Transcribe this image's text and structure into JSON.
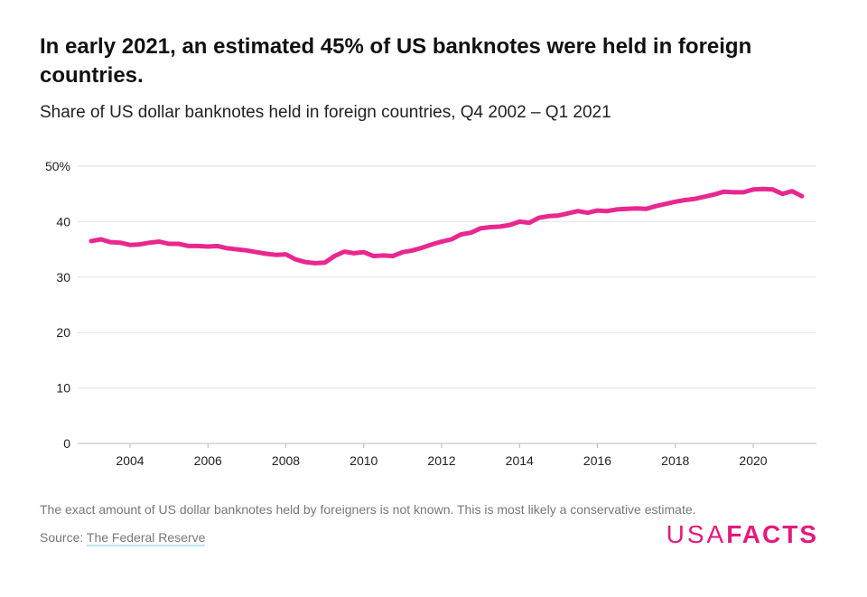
{
  "header": {
    "title": "In early 2021, an estimated 45% of US banknotes were held in foreign countries.",
    "subtitle": "Share of US dollar banknotes held in foreign countries, Q4 2002 – Q1 2021"
  },
  "footer": {
    "note": "The exact amount of US dollar banknotes held by foreigners is not known. This is most likely a conservative estimate.",
    "source_label": "Source: ",
    "source_link": "The Federal Reserve",
    "logo_light": "USA",
    "logo_bold": "FACTS"
  },
  "chart_data": {
    "type": "line",
    "title": "In early 2021, an estimated 45% of US banknotes were held in foreign countries.",
    "subtitle": "Share of US dollar banknotes held in foreign countries, Q4 2002 – Q1 2021",
    "xlabel": "",
    "ylabel": "",
    "start": "Q4 2002",
    "end": "Q1 2021",
    "frequency": "quarterly",
    "xlim": [
      2002.9,
      2021.3
    ],
    "ylim": [
      0,
      50
    ],
    "x_ticks": [
      "2004",
      "2006",
      "2008",
      "2010",
      "2012",
      "2014",
      "2016",
      "2018",
      "2020"
    ],
    "y_ticks": [
      "0",
      "10",
      "20",
      "30",
      "40",
      "50%"
    ],
    "grid": "horizontal",
    "color": "#e8288f",
    "series": [
      {
        "values": [
          36.5,
          36.8,
          36.3,
          36.2,
          35.8,
          35.9,
          36.2,
          36.4,
          36.0,
          36.0,
          35.6,
          35.6,
          35.5,
          35.6,
          35.2,
          35.0,
          34.8,
          34.5,
          34.2,
          34.0,
          34.1,
          33.2,
          32.7,
          32.5,
          32.6,
          33.8,
          34.6,
          34.3,
          34.5,
          33.8,
          33.9,
          33.8,
          34.5,
          34.8,
          35.3,
          35.9,
          36.4,
          36.8,
          37.7,
          38.0,
          38.8,
          39.0,
          39.1,
          39.4,
          40.0,
          39.8,
          40.7,
          41.0,
          41.1,
          41.5,
          41.9,
          41.6,
          42.0,
          41.9,
          42.2,
          42.3,
          42.4,
          42.3,
          42.8,
          43.2,
          43.6,
          43.9,
          44.1,
          44.5,
          44.9,
          45.4,
          45.3,
          45.3,
          45.8,
          45.9,
          45.8,
          45.0,
          45.5,
          44.6
        ]
      }
    ]
  }
}
